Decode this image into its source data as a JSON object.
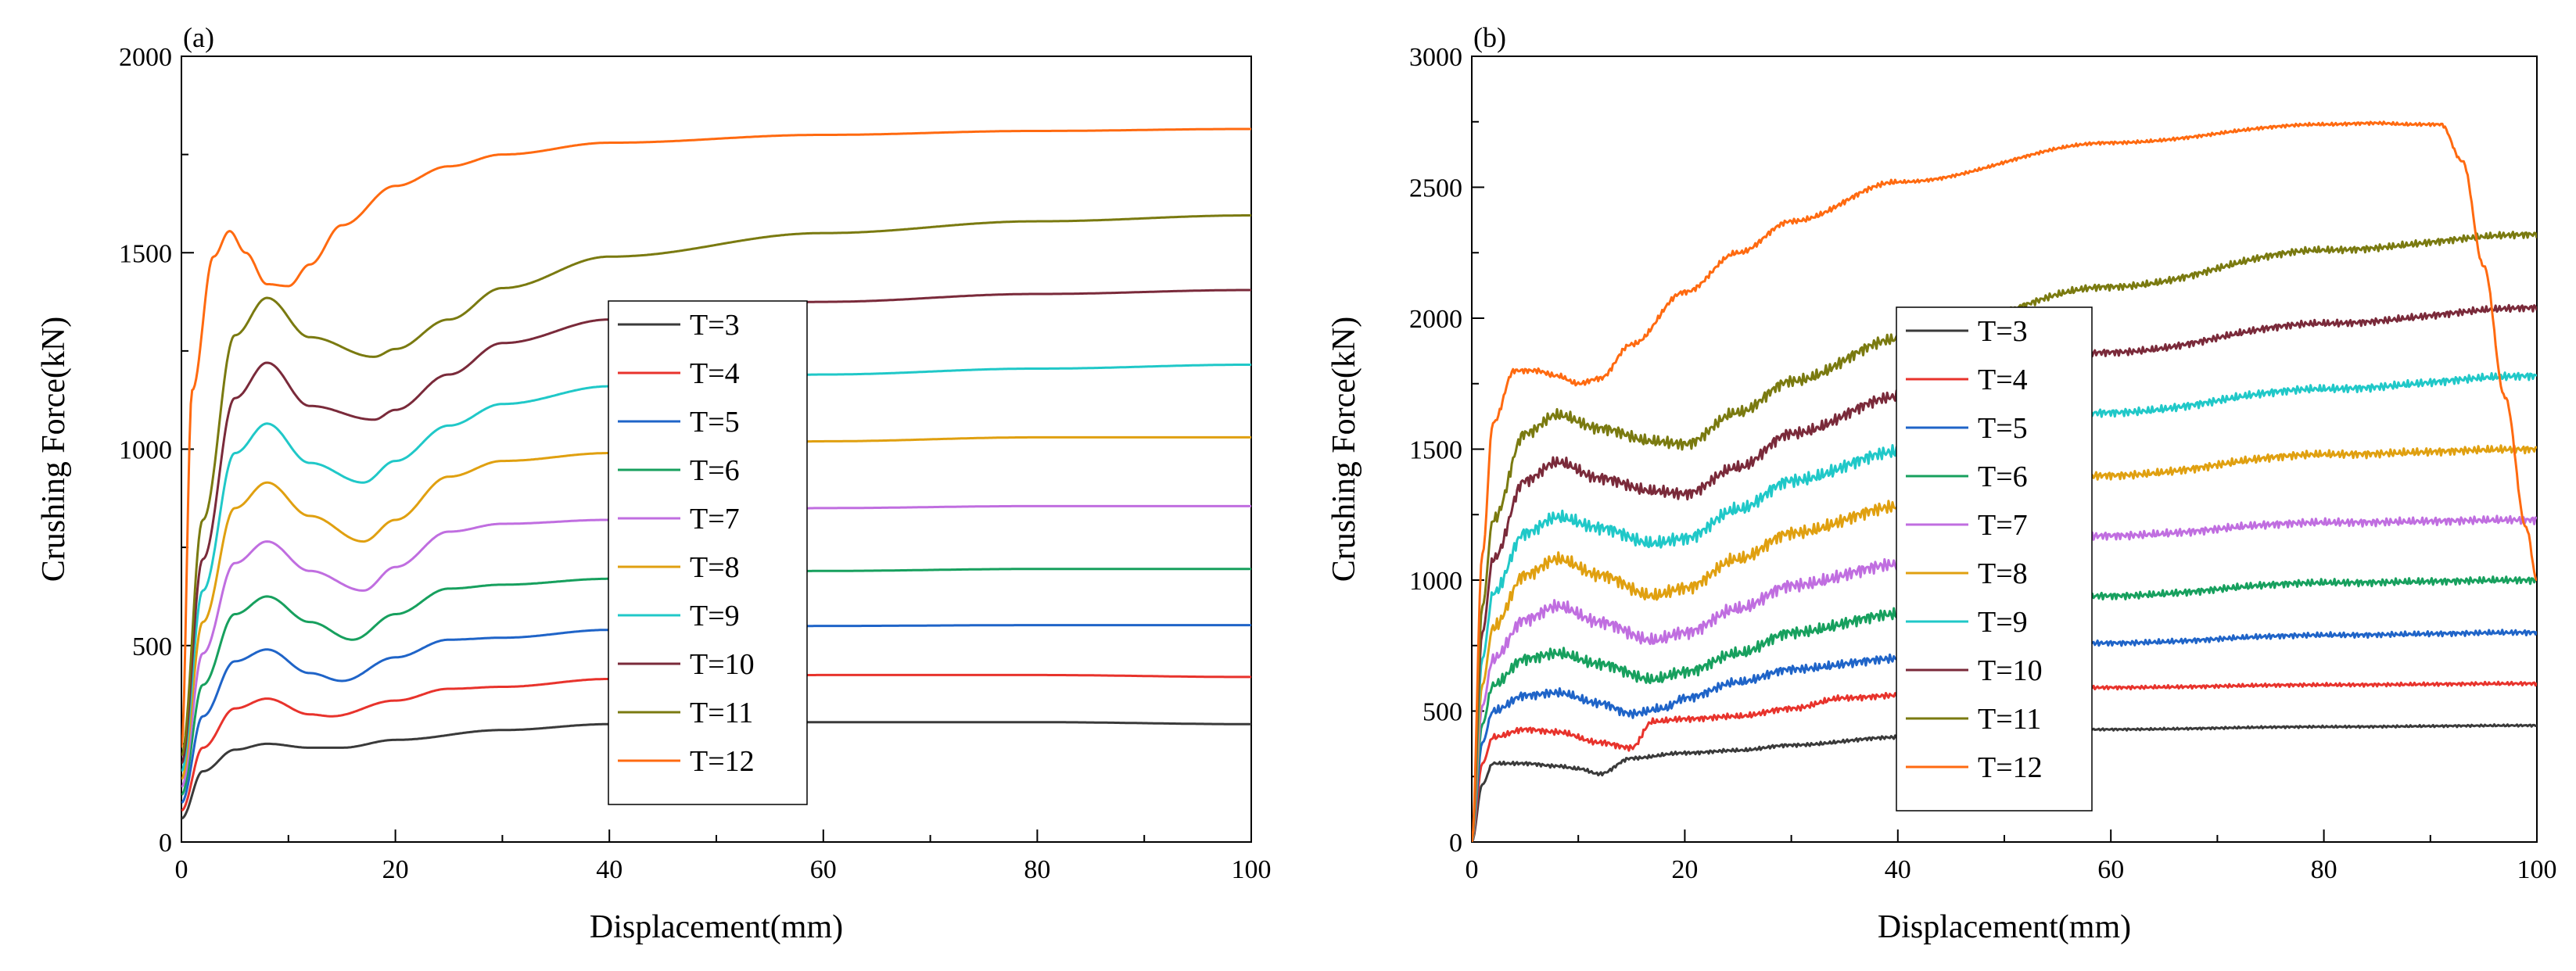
{
  "chart_data": [
    {
      "type": "line",
      "panel_label": "(a)",
      "xlabel": "Displacement(mm)",
      "ylabel": "Crushing Force(kN)",
      "xlim": [
        0,
        100
      ],
      "ylim": [
        0,
        2000
      ],
      "xticks": [
        0,
        20,
        40,
        60,
        80,
        100
      ],
      "yticks": [
        0,
        500,
        1000,
        1500,
        2000
      ],
      "legend_position": "center",
      "series": [
        {
          "name": "T=3",
          "color": "#3a3a3a",
          "x": [
            0,
            2,
            5,
            8,
            12,
            15,
            20,
            30,
            40,
            60,
            80,
            100
          ],
          "y": [
            60,
            180,
            235,
            250,
            240,
            240,
            260,
            285,
            300,
            305,
            305,
            300
          ]
        },
        {
          "name": "T=4",
          "color": "#e8332c",
          "x": [
            0,
            2,
            5,
            8,
            12,
            14,
            20,
            25,
            30,
            40,
            60,
            80,
            100
          ],
          "y": [
            80,
            240,
            340,
            365,
            325,
            320,
            360,
            390,
            395,
            415,
            425,
            425,
            420
          ]
        },
        {
          "name": "T=5",
          "color": "#1f64c8",
          "x": [
            0,
            2,
            5,
            8,
            12,
            15,
            20,
            25,
            30,
            40,
            60,
            80,
            100
          ],
          "y": [
            100,
            320,
            460,
            490,
            430,
            410,
            470,
            515,
            520,
            540,
            550,
            552,
            552
          ]
        },
        {
          "name": "T=6",
          "color": "#17a05e",
          "x": [
            0,
            2,
            5,
            8,
            12,
            16,
            20,
            25,
            30,
            40,
            60,
            80,
            100
          ],
          "y": [
            120,
            400,
            580,
            625,
            560,
            515,
            580,
            645,
            655,
            670,
            690,
            695,
            695
          ]
        },
        {
          "name": "T=7",
          "color": "#c06ee0",
          "x": [
            0,
            2,
            5,
            8,
            12,
            17,
            20,
            25,
            30,
            40,
            60,
            80,
            100
          ],
          "y": [
            140,
            480,
            710,
            765,
            690,
            640,
            700,
            790,
            810,
            820,
            850,
            855,
            855
          ]
        },
        {
          "name": "T=8",
          "color": "#e0a010",
          "x": [
            0,
            2,
            5,
            8,
            12,
            17,
            20,
            25,
            30,
            40,
            60,
            80,
            100
          ],
          "y": [
            160,
            560,
            850,
            915,
            830,
            765,
            820,
            930,
            970,
            990,
            1020,
            1030,
            1030
          ]
        },
        {
          "name": "T=9",
          "color": "#20c8c8",
          "x": [
            0,
            2,
            5,
            8,
            12,
            17,
            20,
            25,
            30,
            40,
            60,
            80,
            100
          ],
          "y": [
            180,
            640,
            990,
            1065,
            965,
            915,
            970,
            1060,
            1115,
            1160,
            1190,
            1205,
            1215
          ]
        },
        {
          "name": "T=10",
          "color": "#7a2a3a",
          "x": [
            0,
            2,
            5,
            8,
            12,
            18,
            20,
            25,
            30,
            40,
            60,
            80,
            100
          ],
          "y": [
            200,
            720,
            1130,
            1220,
            1110,
            1075,
            1100,
            1190,
            1270,
            1330,
            1375,
            1395,
            1405
          ]
        },
        {
          "name": "T=11",
          "color": "#7a7a10",
          "x": [
            0,
            2,
            5,
            8,
            12,
            18,
            20,
            25,
            30,
            40,
            60,
            80,
            100
          ],
          "y": [
            220,
            820,
            1290,
            1385,
            1285,
            1235,
            1255,
            1330,
            1410,
            1490,
            1550,
            1580,
            1595
          ]
        },
        {
          "name": "T=12",
          "color": "#ff6a10",
          "x": [
            0,
            1,
            3,
            4.5,
            6,
            8,
            10,
            12,
            15,
            20,
            25,
            30,
            40,
            60,
            80,
            100
          ],
          "y": [
            240,
            1150,
            1490,
            1555,
            1500,
            1420,
            1415,
            1470,
            1570,
            1670,
            1720,
            1750,
            1780,
            1800,
            1810,
            1815
          ]
        }
      ]
    },
    {
      "type": "line",
      "panel_label": "(b)",
      "xlabel": "Displacement(mm)",
      "ylabel": "Crushing Force(kN)",
      "xlim": [
        0,
        100
      ],
      "ylim": [
        0,
        3000
      ],
      "xticks": [
        0,
        20,
        40,
        60,
        80,
        100
      ],
      "yticks": [
        0,
        500,
        1000,
        1500,
        2000,
        2500,
        3000
      ],
      "legend_position": "center",
      "series": [
        {
          "name": "T=3",
          "color": "#3a3a3a",
          "noise": 12,
          "x": [
            0,
            1,
            2,
            5,
            8,
            10,
            12,
            15,
            20,
            25,
            30,
            40,
            60,
            80,
            100
          ],
          "y": [
            0,
            220,
            300,
            300,
            290,
            280,
            260,
            320,
            340,
            350,
            370,
            400,
            430,
            440,
            445
          ]
        },
        {
          "name": "T=4",
          "color": "#e8332c",
          "noise": 20,
          "x": [
            0,
            1,
            2,
            5,
            8,
            12,
            15,
            17,
            20,
            25,
            30,
            35,
            40,
            60,
            80,
            100
          ],
          "y": [
            0,
            300,
            400,
            430,
            420,
            380,
            360,
            460,
            470,
            480,
            510,
            550,
            560,
            590,
            600,
            605
          ]
        },
        {
          "name": "T=5",
          "color": "#1f64c8",
          "noise": 30,
          "x": [
            0,
            1,
            2,
            5,
            8,
            12,
            15,
            18,
            20,
            25,
            30,
            40,
            60,
            80,
            100
          ],
          "y": [
            0,
            380,
            500,
            560,
            570,
            530,
            490,
            510,
            550,
            610,
            660,
            700,
            760,
            790,
            800
          ]
        },
        {
          "name": "T=6",
          "color": "#17a05e",
          "noise": 40,
          "x": [
            0,
            1,
            2,
            5,
            8,
            12,
            17,
            20,
            25,
            30,
            40,
            60,
            80,
            100
          ],
          "y": [
            0,
            450,
            600,
            700,
            720,
            680,
            620,
            650,
            720,
            800,
            870,
            940,
            990,
            1000
          ]
        },
        {
          "name": "T=7",
          "color": "#c06ee0",
          "noise": 45,
          "x": [
            0,
            1,
            2,
            5,
            8,
            12,
            17,
            20,
            25,
            30,
            40,
            60,
            80,
            100
          ],
          "y": [
            0,
            520,
            700,
            850,
            900,
            840,
            770,
            800,
            890,
            980,
            1060,
            1170,
            1220,
            1230
          ]
        },
        {
          "name": "T=8",
          "color": "#e0a010",
          "noise": 45,
          "x": [
            0,
            1,
            2,
            5,
            8,
            12,
            17,
            20,
            25,
            30,
            40,
            60,
            80,
            100
          ],
          "y": [
            0,
            600,
            820,
            1020,
            1080,
            1020,
            940,
            970,
            1080,
            1180,
            1280,
            1400,
            1480,
            1500
          ]
        },
        {
          "name": "T=9",
          "color": "#20c8c8",
          "noise": 45,
          "x": [
            0,
            1,
            2,
            5,
            8,
            12,
            17,
            20,
            25,
            30,
            40,
            60,
            80,
            100
          ],
          "y": [
            0,
            700,
            950,
            1180,
            1240,
            1200,
            1140,
            1160,
            1270,
            1380,
            1490,
            1640,
            1730,
            1780
          ]
        },
        {
          "name": "T=10",
          "color": "#7a2a3a",
          "noise": 40,
          "x": [
            0,
            1,
            2,
            5,
            8,
            12,
            17,
            20,
            25,
            30,
            40,
            60,
            80,
            100
          ],
          "y": [
            0,
            800,
            1080,
            1380,
            1450,
            1390,
            1340,
            1330,
            1430,
            1560,
            1700,
            1870,
            1980,
            2040
          ]
        },
        {
          "name": "T=11",
          "color": "#7a7a10",
          "noise": 40,
          "x": [
            0,
            1,
            2,
            5,
            8,
            12,
            17,
            20,
            25,
            30,
            40,
            60,
            80,
            100
          ],
          "y": [
            0,
            900,
            1230,
            1560,
            1630,
            1580,
            1530,
            1520,
            1640,
            1760,
            1920,
            2120,
            2260,
            2320
          ]
        },
        {
          "name": "T=12",
          "color": "#ff6a10",
          "noise": 18,
          "x": [
            0,
            1,
            2,
            4,
            6,
            8,
            10,
            12,
            15,
            20,
            25,
            30,
            40,
            60,
            80,
            85,
            88,
            91,
            93,
            95,
            97,
            99,
            100
          ],
          "y": [
            0,
            1100,
            1600,
            1800,
            1800,
            1780,
            1750,
            1770,
            1900,
            2100,
            2250,
            2370,
            2520,
            2670,
            2740,
            2745,
            2740,
            2740,
            2600,
            2200,
            1700,
            1200,
            1000
          ]
        }
      ]
    }
  ]
}
